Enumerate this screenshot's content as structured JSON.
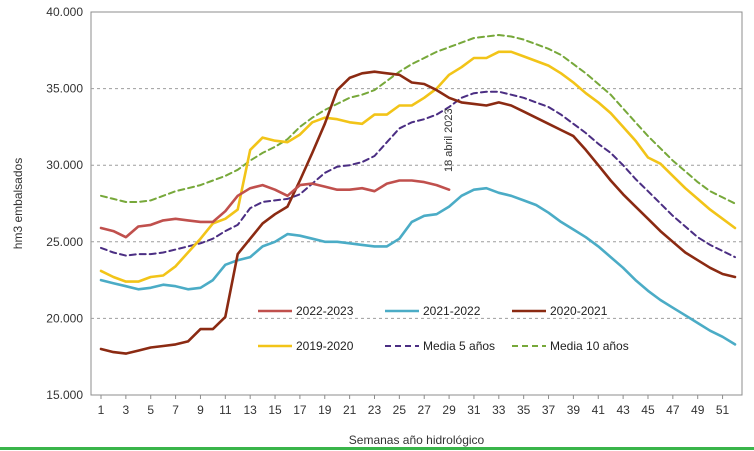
{
  "chart_data": {
    "type": "line",
    "title": "",
    "xlabel": "Semanas año hidrológico",
    "ylabel": "hm3 embalsados",
    "xlim": [
      1,
      52
    ],
    "ylim": [
      15000,
      40000
    ],
    "x_ticks": [
      "1",
      "3",
      "5",
      "7",
      "9",
      "11",
      "13",
      "15",
      "17",
      "19",
      "21",
      "23",
      "25",
      "27",
      "29",
      "31",
      "33",
      "35",
      "37",
      "39",
      "41",
      "43",
      "45",
      "47",
      "49",
      "51"
    ],
    "y_ticks": [
      "15.000",
      "20.000",
      "25.000",
      "30.000",
      "35.000",
      "40.000"
    ],
    "y_tick_values": [
      15000,
      20000,
      25000,
      30000,
      35000,
      40000
    ],
    "grid": "horizontal dashed",
    "annotation": {
      "text": "18 abril 2023",
      "x": 29
    },
    "legend": {
      "placement": "bottom-right inside plot"
    },
    "x": [
      1,
      2,
      3,
      4,
      5,
      6,
      7,
      8,
      9,
      10,
      11,
      12,
      13,
      14,
      15,
      16,
      17,
      18,
      19,
      20,
      21,
      22,
      23,
      24,
      25,
      26,
      27,
      28,
      29,
      30,
      31,
      32,
      33,
      34,
      35,
      36,
      37,
      38,
      39,
      40,
      41,
      42,
      43,
      44,
      45,
      46,
      47,
      48,
      49,
      50,
      51,
      52
    ],
    "series": [
      {
        "name": "2022-2023",
        "color": "#c0504d",
        "dash": "solid",
        "values": [
          25900,
          25700,
          25300,
          26000,
          26100,
          26400,
          26500,
          26400,
          26300,
          26300,
          27000,
          28000,
          28500,
          28700,
          28400,
          28000,
          28700,
          28800,
          28600,
          28400,
          28400,
          28500,
          28300,
          28800,
          29000,
          29000,
          28900,
          28700,
          28400,
          null,
          null,
          null,
          null,
          null,
          null,
          null,
          null,
          null,
          null,
          null,
          null,
          null,
          null,
          null,
          null,
          null,
          null,
          null,
          null,
          null,
          null,
          null
        ]
      },
      {
        "name": "2021-2022",
        "color": "#4bacc6",
        "dash": "solid",
        "values": [
          22500,
          22300,
          22100,
          21900,
          22000,
          22200,
          22100,
          21900,
          22000,
          22500,
          23500,
          23800,
          24000,
          24700,
          25000,
          25500,
          25400,
          25200,
          25000,
          25000,
          24900,
          24800,
          24700,
          24700,
          25200,
          26300,
          26700,
          26800,
          27300,
          28000,
          28400,
          28500,
          28200,
          28000,
          27700,
          27400,
          26900,
          26300,
          25800,
          25300,
          24700,
          24000,
          23300,
          22500,
          21800,
          21200,
          20700,
          20200,
          19700,
          19200,
          18800,
          18300
        ]
      },
      {
        "name": "2020-2021",
        "color": "#8b2a12",
        "dash": "solid",
        "values": [
          18000,
          17800,
          17700,
          17900,
          18100,
          18200,
          18300,
          18500,
          19300,
          19300,
          20100,
          24200,
          25200,
          26200,
          26800,
          27300,
          29000,
          30800,
          32700,
          34900,
          35700,
          36000,
          36100,
          36000,
          35900,
          35400,
          35300,
          34900,
          34400,
          34100,
          34000,
          33900,
          34100,
          33900,
          33500,
          33100,
          32700,
          32300,
          31900,
          31000,
          30000,
          29000,
          28100,
          27300,
          26500,
          25700,
          25000,
          24300,
          23800,
          23300,
          22900,
          22700
        ]
      },
      {
        "name": "2019-2020",
        "color": "#f2c418",
        "dash": "solid",
        "values": [
          23100,
          22700,
          22400,
          22400,
          22700,
          22800,
          23400,
          24300,
          25200,
          26200,
          26500,
          27100,
          31000,
          31800,
          31600,
          31500,
          32000,
          32800,
          33100,
          33000,
          32800,
          32700,
          33300,
          33300,
          33900,
          33900,
          34400,
          35000,
          35900,
          36400,
          37000,
          37000,
          37400,
          37400,
          37100,
          36800,
          36500,
          36000,
          35400,
          34700,
          34100,
          33400,
          32500,
          31600,
          30500,
          30100,
          29300,
          28500,
          27800,
          27100,
          26500,
          25900
        ]
      },
      {
        "name": "Media 5 años",
        "color": "#4b2e83",
        "dash": "dashed",
        "values": [
          24600,
          24300,
          24100,
          24200,
          24200,
          24300,
          24500,
          24700,
          24900,
          25200,
          25700,
          26100,
          27200,
          27600,
          27700,
          27800,
          28100,
          28800,
          29500,
          29900,
          30000,
          30200,
          30600,
          31500,
          32400,
          32800,
          33000,
          33300,
          33800,
          34400,
          34700,
          34800,
          34800,
          34600,
          34400,
          34100,
          33800,
          33300,
          32700,
          32100,
          31400,
          30800,
          30000,
          29100,
          28300,
          27500,
          26700,
          26000,
          25300,
          24800,
          24400,
          24000
        ]
      },
      {
        "name": "Media 10 años",
        "color": "#77a83a",
        "dash": "dashed",
        "values": [
          28000,
          27800,
          27600,
          27600,
          27700,
          28000,
          28300,
          28500,
          28700,
          29000,
          29300,
          29700,
          30300,
          30800,
          31200,
          31700,
          32500,
          33100,
          33600,
          34000,
          34400,
          34600,
          34900,
          35500,
          36100,
          36600,
          37000,
          37400,
          37700,
          38000,
          38300,
          38400,
          38500,
          38400,
          38200,
          37900,
          37600,
          37200,
          36600,
          36000,
          35300,
          34600,
          33700,
          32800,
          31900,
          31100,
          30300,
          29600,
          28900,
          28300,
          27900,
          27500
        ]
      }
    ]
  }
}
